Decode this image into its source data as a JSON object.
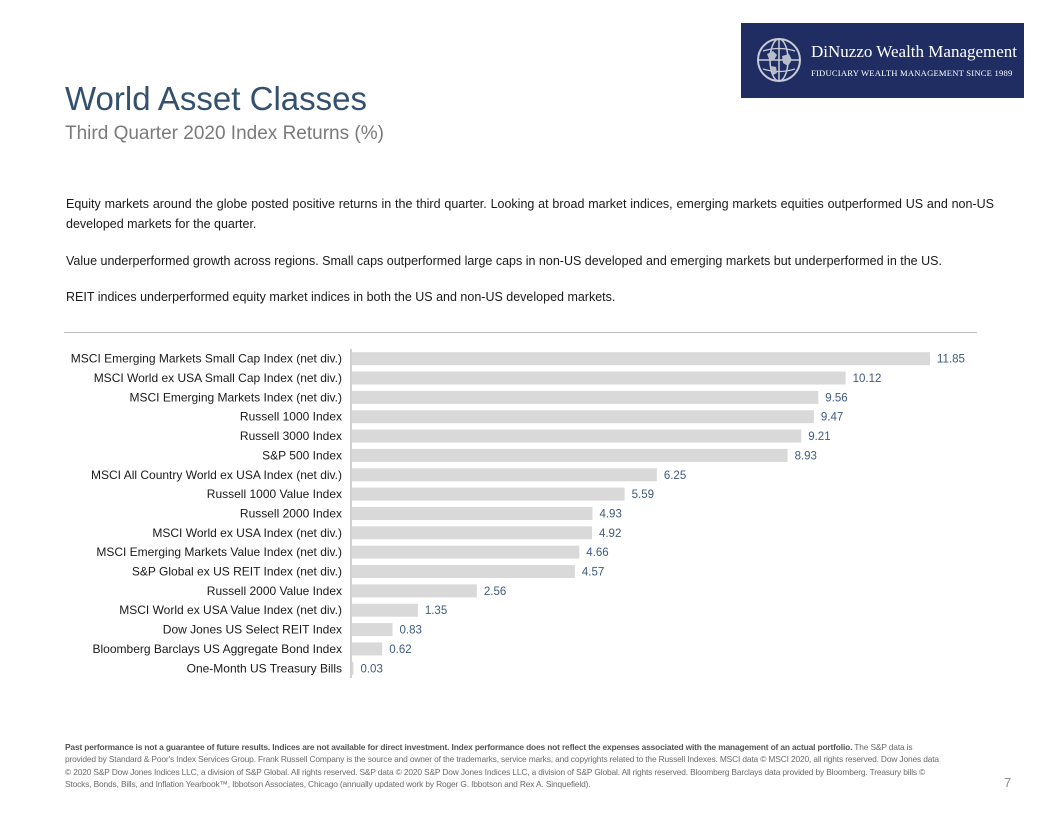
{
  "logo": {
    "name": "DiNuzzo Wealth Management",
    "tagline": "FIDUCIARY WEALTH MANAGEMENT SINCE 1989",
    "icon": "globe-icon",
    "bg_color": "#1f2d63"
  },
  "header": {
    "title": "World Asset Classes",
    "subtitle": "Third Quarter 2020 Index Returns (%)"
  },
  "body": {
    "paragraphs": [
      "Equity markets around the globe posted positive returns in the third quarter. Looking at broad market indices, emerging markets equities outperformed US and non-US developed markets for the quarter.",
      "Value underperformed growth across regions. Small caps outperformed large caps in non-US developed and emerging markets but underperformed in the US.",
      "REIT indices underperformed equity market indices in both the US and non-US developed markets."
    ]
  },
  "chart_data": {
    "type": "bar",
    "orientation": "horizontal",
    "categories": [
      "MSCI Emerging Markets Small Cap Index (net div.)",
      "MSCI World ex USA Small Cap Index (net div.)",
      "MSCI Emerging Markets Index (net div.)",
      "Russell 1000 Index",
      "Russell 3000 Index",
      "S&P 500 Index",
      "MSCI All Country World ex USA Index (net div.)",
      "Russell 1000 Value Index",
      "Russell 2000 Index",
      "MSCI World ex USA Index (net div.)",
      "MSCI Emerging Markets Value Index (net div.)",
      "S&P Global ex US REIT Index (net div.)",
      "Russell 2000 Value Index",
      "MSCI World ex USA Value Index (net div.)",
      "Dow Jones US Select REIT Index",
      "Bloomberg Barclays US Aggregate Bond Index",
      "One-Month US Treasury Bills"
    ],
    "values": [
      11.85,
      10.12,
      9.56,
      9.47,
      9.21,
      8.93,
      6.25,
      5.59,
      4.93,
      4.92,
      4.66,
      4.57,
      2.56,
      1.35,
      0.83,
      0.62,
      0.03
    ],
    "value_labels": [
      "11.85",
      "10.12",
      "9.56",
      "9.47",
      "9.21",
      "8.93",
      "6.25",
      "5.59",
      "4.93",
      "4.92",
      "4.66",
      "4.57",
      "2.56",
      "1.35",
      "0.83",
      "0.62",
      "0.03"
    ],
    "xlim": [
      0,
      11.85
    ],
    "bar_color": "#d9d9d9",
    "label_color": "#3d5a80",
    "grid": false
  },
  "footer": {
    "bold_text": "Past performance is not a guarantee of future results. Indices are not available for direct investment. Index performance does not reflect the expenses associated with the management of an actual portfolio.",
    "text": " The S&P data is provided by Standard & Poor's Index Services Group. Frank Russell Company is the source and owner of the trademarks, service marks, and copyrights related to the Russell Indexes. MSCI data © MSCI 2020, all rights reserved. Dow Jones data © 2020 S&P Dow Jones Indices LLC, a division of S&P Global. All rights reserved. S&P data © 2020 S&P Dow Jones Indices LLC, a division of S&P Global. All rights reserved. Bloomberg Barclays data provided by Bloomberg. Treasury bills © Stocks, Bonds, Bills, and Inflation Yearbook™, Ibbotson Associates, Chicago (annually updated work by Roger G. Ibbotson and Rex A. Sinquefield)."
  },
  "page_number": "7"
}
